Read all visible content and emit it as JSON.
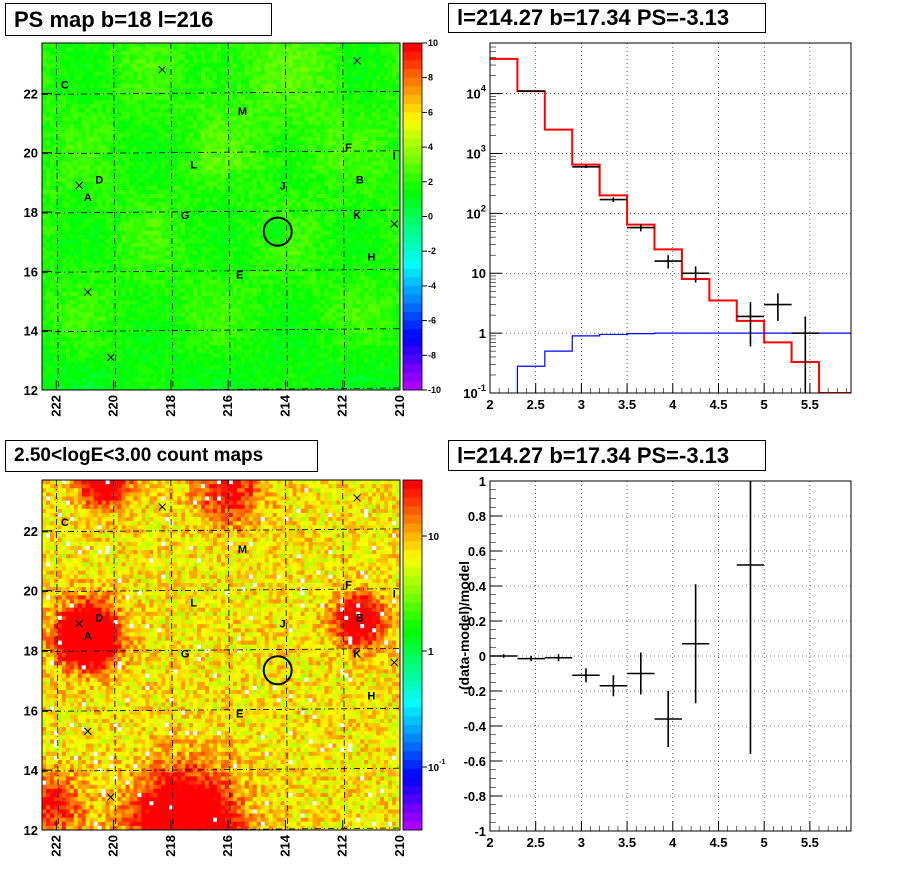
{
  "titles": {
    "ps_map": "PS map b=18 l=216",
    "spectrum": "l=214.27 b=17.34 PS=-3.13",
    "count_map": "2.50<logE<3.00 count maps",
    "residual": "l=214.27 b=17.34 PS=-3.13"
  },
  "chart_data": [
    {
      "type": "heatmap",
      "name": "ps_map",
      "title": "PS map b=18 l=216",
      "xlim": [
        222.5,
        210
      ],
      "ylim": [
        12,
        23.7
      ],
      "x_ticks": [
        222,
        220,
        218,
        216,
        214,
        212,
        210
      ],
      "y_ticks": [
        12,
        14,
        16,
        18,
        20,
        22
      ],
      "colorbar": {
        "range": [
          -10,
          10
        ],
        "ticks": [
          "-10",
          "-8",
          "-6",
          "-4",
          "-2",
          "0",
          "2",
          "4",
          "6",
          "8",
          "10"
        ]
      },
      "circle_center": {
        "l": 214.27,
        "b": 17.34
      },
      "sources": [
        {
          "label": "C",
          "l": 221.7,
          "b": 22.3
        },
        {
          "label": "M",
          "l": 215.5,
          "b": 21.4
        },
        {
          "label": "F",
          "l": 211.8,
          "b": 20.2
        },
        {
          "label": "L",
          "l": 217.2,
          "b": 19.6
        },
        {
          "label": "J",
          "l": 214.1,
          "b": 18.9
        },
        {
          "label": "D",
          "l": 220.5,
          "b": 19.1
        },
        {
          "label": "B",
          "l": 211.4,
          "b": 19.1
        },
        {
          "label": "A",
          "l": 220.9,
          "b": 18.5
        },
        {
          "label": "G",
          "l": 217.5,
          "b": 17.9
        },
        {
          "label": "K",
          "l": 211.5,
          "b": 17.9
        },
        {
          "label": "H",
          "l": 211.0,
          "b": 16.5
        },
        {
          "label": "E",
          "l": 215.6,
          "b": 15.9
        },
        {
          "label": "I",
          "l": 210.2,
          "b": 19.9
        }
      ],
      "crosses": [
        {
          "l": 218.3,
          "b": 22.8
        },
        {
          "l": 211.5,
          "b": 23.1
        },
        {
          "l": 221.2,
          "b": 18.9
        },
        {
          "l": 220.9,
          "b": 15.3
        },
        {
          "l": 220.1,
          "b": 13.1
        },
        {
          "l": 210.2,
          "b": 17.6
        }
      ]
    },
    {
      "type": "line",
      "name": "spectrum",
      "title": "l=214.27 b=17.34 PS=-3.13",
      "xlim": [
        2,
        5.95
      ],
      "ylim": [
        0.1,
        70000
      ],
      "y_scale": "log",
      "x_ticks": [
        "2",
        "2.5",
        "3",
        "3.5",
        "4",
        "4.5",
        "5",
        "5.5"
      ],
      "y_ticks": [
        "10^-1",
        "1",
        "10",
        "10^2",
        "10^3",
        "10^4"
      ],
      "grid": true,
      "series": [
        {
          "color": "#ff0000",
          "style": "step",
          "edges": [
            2.0,
            2.3,
            2.6,
            2.9,
            3.2,
            3.5,
            3.8,
            4.1,
            4.4,
            4.7,
            5.0,
            5.3,
            5.6,
            5.95
          ],
          "values": [
            38000,
            11000,
            2500,
            650,
            200,
            65,
            25,
            8,
            3.5,
            1.6,
            0.7,
            0.33,
            0.1
          ]
        },
        {
          "color": "#0000ff",
          "style": "step",
          "edges": [
            2.3,
            2.6,
            2.9,
            3.2,
            3.5,
            3.8,
            4.1,
            4.4,
            4.7,
            5.0,
            5.3,
            5.6,
            5.95
          ],
          "values": [
            0.28,
            0.5,
            0.9,
            0.95,
            0.98,
            1.0,
            1.0,
            1.0,
            1.0,
            1.0,
            1.0,
            1.0
          ]
        },
        {
          "color": "#000000",
          "style": "points",
          "points": [
            {
              "x": 2.45,
              "y": 11000,
              "xerr": 0.15,
              "ylo": 10800,
              "yhi": 11200
            },
            {
              "x": 3.05,
              "y": 600,
              "xerr": 0.15,
              "ylo": 570,
              "yhi": 630
            },
            {
              "x": 3.35,
              "y": 170,
              "xerr": 0.15,
              "ylo": 155,
              "yhi": 185
            },
            {
              "x": 3.65,
              "y": 58,
              "xerr": 0.15,
              "ylo": 50,
              "yhi": 66
            },
            {
              "x": 3.95,
              "y": 16,
              "xerr": 0.15,
              "ylo": 12,
              "yhi": 20
            },
            {
              "x": 4.25,
              "y": 10,
              "xerr": 0.15,
              "ylo": 7,
              "yhi": 13
            },
            {
              "x": 4.85,
              "y": 1.9,
              "xerr": 0.15,
              "ylo": 0.6,
              "yhi": 3.3
            },
            {
              "x": 5.15,
              "y": 3.0,
              "xerr": 0.15,
              "ylo": 1.6,
              "yhi": 4.6
            },
            {
              "x": 5.45,
              "y": 1.0,
              "xerr": 0.15,
              "ylo": 0.1,
              "yhi": 1.9
            }
          ]
        }
      ]
    },
    {
      "type": "heatmap",
      "name": "count_map",
      "title": "2.50<logE<3.00 count maps",
      "xlim": [
        222.5,
        210
      ],
      "ylim": [
        12,
        23.7
      ],
      "x_ticks": [
        222,
        220,
        218,
        216,
        214,
        212,
        210
      ],
      "y_ticks": [
        12,
        14,
        16,
        18,
        20,
        22
      ],
      "colorbar": {
        "scale": "log",
        "ticks": [
          "10",
          "1",
          "10^-1"
        ]
      }
    },
    {
      "type": "scatter",
      "name": "residual",
      "title": "l=214.27 b=17.34 PS=-3.13",
      "xlim": [
        2,
        5.95
      ],
      "ylim": [
        -1,
        1
      ],
      "ylabel": "(data-model)/model",
      "x_ticks": [
        "2",
        "2.5",
        "3",
        "3.5",
        "4",
        "4.5",
        "5",
        "5.5"
      ],
      "y_ticks": [
        "-1",
        "-0.8",
        "-0.6",
        "-0.4",
        "-0.2",
        "0",
        "0.2",
        "0.4",
        "0.6",
        "0.8",
        "1"
      ],
      "grid": true,
      "points": [
        {
          "x": 2.15,
          "y": 0.0,
          "xerr": 0.15,
          "ylo": -0.01,
          "yhi": 0.01
        },
        {
          "x": 2.45,
          "y": -0.015,
          "xerr": 0.15,
          "ylo": -0.03,
          "yhi": 0.0
        },
        {
          "x": 2.75,
          "y": -0.01,
          "xerr": 0.15,
          "ylo": -0.03,
          "yhi": 0.01
        },
        {
          "x": 3.05,
          "y": -0.11,
          "xerr": 0.15,
          "ylo": -0.15,
          "yhi": -0.07
        },
        {
          "x": 3.35,
          "y": -0.17,
          "xerr": 0.15,
          "ylo": -0.23,
          "yhi": -0.11
        },
        {
          "x": 3.65,
          "y": -0.1,
          "xerr": 0.15,
          "ylo": -0.22,
          "yhi": 0.02
        },
        {
          "x": 3.95,
          "y": -0.36,
          "xerr": 0.15,
          "ylo": -0.52,
          "yhi": -0.2
        },
        {
          "x": 4.25,
          "y": 0.07,
          "xerr": 0.15,
          "ylo": -0.27,
          "yhi": 0.41
        },
        {
          "x": 4.85,
          "y": 0.52,
          "xerr": 0.15,
          "ylo": -0.56,
          "yhi": 1.6
        }
      ]
    }
  ]
}
